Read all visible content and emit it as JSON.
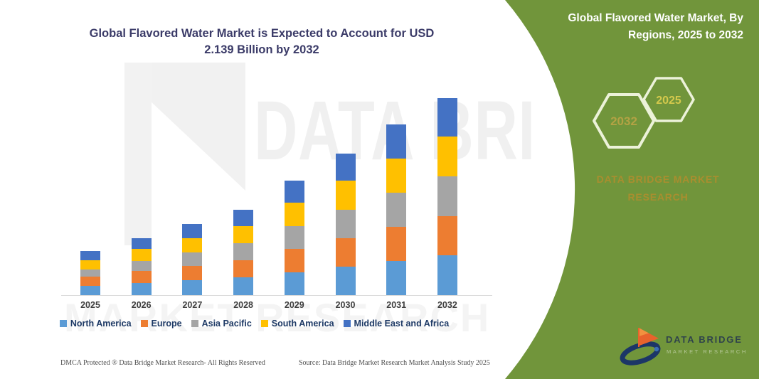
{
  "left_panel": {
    "title_line1": "Global Flavored Water Market is Expected to Account for USD",
    "title_line2": "2.139 Billion by 2032",
    "watermark_top": "DATA BRI",
    "watermark_bottom": "MARKET RESEARCH"
  },
  "chart_data": {
    "type": "bar",
    "stacked": true,
    "unit": "USD Billion",
    "title": "Global Flavored Water Market is Expected to Account for USD 2.139 Billion by 2032",
    "categories": [
      "2025",
      "2026",
      "2027",
      "2028",
      "2029",
      "2030",
      "2031",
      "2032"
    ],
    "series": [
      {
        "name": "North America",
        "color": "#5B9BD5",
        "values": [
          0.1,
          0.13,
          0.16,
          0.19,
          0.25,
          0.31,
          0.37,
          0.43
        ]
      },
      {
        "name": "Europe",
        "color": "#ED7D31",
        "values": [
          0.1,
          0.13,
          0.16,
          0.19,
          0.25,
          0.31,
          0.37,
          0.43
        ]
      },
      {
        "name": "Asia Pacific",
        "color": "#A5A5A5",
        "values": [
          0.08,
          0.11,
          0.14,
          0.18,
          0.25,
          0.31,
          0.37,
          0.43
        ]
      },
      {
        "name": "South America",
        "color": "#FFC000",
        "values": [
          0.1,
          0.13,
          0.16,
          0.19,
          0.25,
          0.31,
          0.37,
          0.43
        ]
      },
      {
        "name": "Middle East and Africa",
        "color": "#4472C4",
        "values": [
          0.1,
          0.12,
          0.15,
          0.18,
          0.24,
          0.3,
          0.37,
          0.419
        ]
      }
    ],
    "totals": [
      0.48,
      0.62,
      0.77,
      0.93,
      1.24,
      1.54,
      1.85,
      2.139
    ],
    "ylim": [
      0,
      2.25
    ],
    "gridlines": false,
    "axis_labels_shown": false,
    "legend_position": "bottom"
  },
  "footer": {
    "dmca": "DMCA Protected ® Data Bridge Market Research-  All Rights Reserved",
    "source": "Source: Data Bridge Market Research  Market Analysis Study 2025"
  },
  "right_panel": {
    "title_line1": "Global Flavored Water Market, By",
    "title_line2": "Regions, 2025 to 2032",
    "hexagons": {
      "back_label": "2032",
      "front_label": "2025"
    },
    "brand_line1": "DATA BRIDGE MARKET",
    "brand_line2": "RESEARCH",
    "logo": {
      "title": "DATA BRIDGE",
      "subtitle": "MARKET RESEARCH"
    }
  },
  "colors": {
    "panel_green": "#71953B",
    "accent_gold": "#A98E2F",
    "title_navy": "#3B3B68",
    "legend_navy": "#1E3A66",
    "axis_line": "#D9D9D9",
    "hex_outline": "#ECF2D9",
    "hex_back_label": "#B3A244",
    "hex_front_label": "#D4C94C",
    "logo_orange": "#E8632C",
    "logo_navy": "#1C3667"
  }
}
